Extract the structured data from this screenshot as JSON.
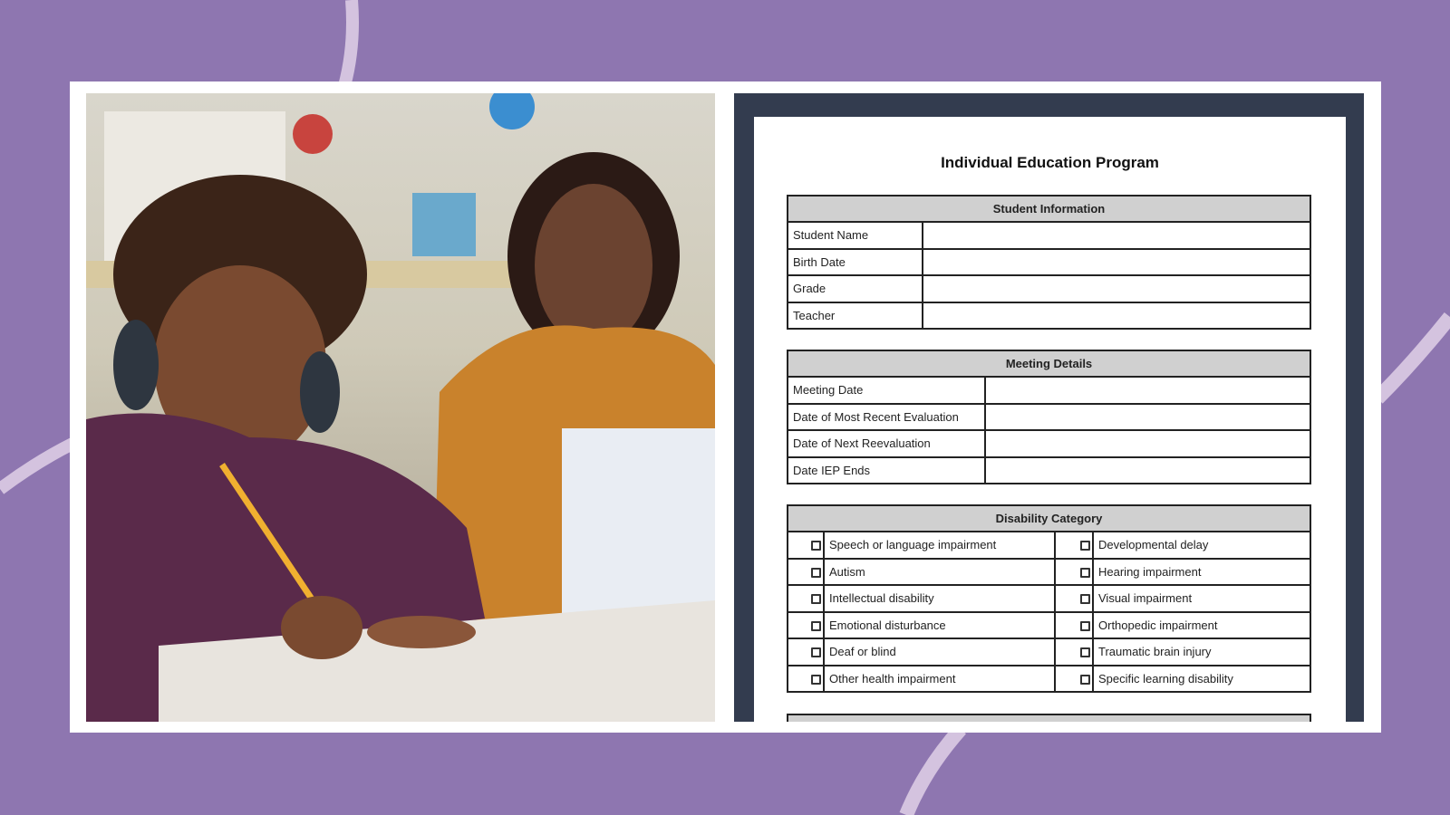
{
  "colors": {
    "background": "#8e76b0",
    "accent_arc": "#d4c3df",
    "panel": "#333c4f",
    "table_header": "#d0d0d0"
  },
  "photo": {
    "icon": "photo-teacher-and-student"
  },
  "document": {
    "title": "Individual Education Program",
    "student_info": {
      "header": "Student Information",
      "rows": [
        "Student Name",
        "Birth Date",
        "Grade",
        "Teacher"
      ]
    },
    "meeting_details": {
      "header": "Meeting Details",
      "rows": [
        "Meeting Date",
        "Date of Most Recent Evaluation",
        "Date of Next Reevaluation",
        "Date IEP Ends"
      ]
    },
    "disability_category": {
      "header": "Disability Category",
      "rows": [
        [
          "Speech or language impairment",
          "Developmental delay"
        ],
        [
          "Autism",
          "Hearing impairment"
        ],
        [
          "Intellectual disability",
          "Visual impairment"
        ],
        [
          "Emotional disturbance",
          "Orthopedic impairment"
        ],
        [
          "Deaf or blind",
          "Traumatic brain injury"
        ],
        [
          "Other health impairment",
          "Specific learning disability"
        ]
      ]
    }
  }
}
